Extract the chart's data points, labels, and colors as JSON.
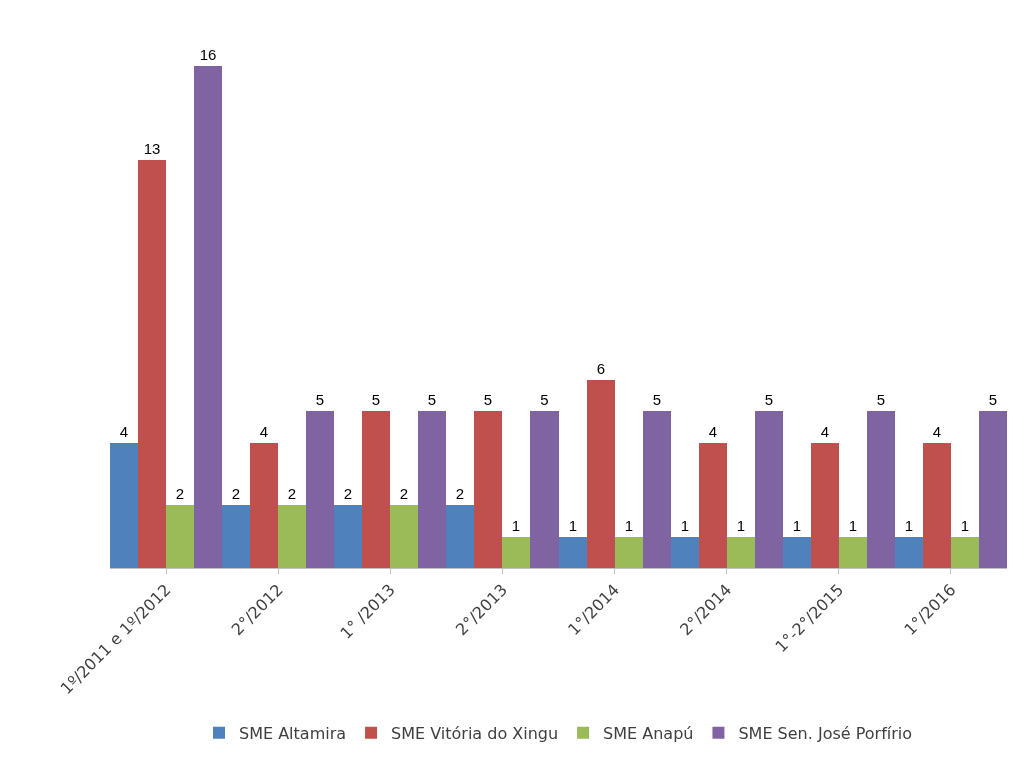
{
  "chart_data": {
    "type": "bar",
    "categories": [
      "1º/2011 e 1º/2012",
      "2°/2012",
      "1° /2013",
      "2°/2013",
      "1°/2014",
      "2°/2014",
      "1°-2°/2015",
      "1°/2016"
    ],
    "series": [
      {
        "name": "SME Altamira",
        "color": "#4f81bd",
        "values": [
          4,
          2,
          2,
          2,
          1,
          1,
          1,
          1
        ]
      },
      {
        "name": "SME Vitória do Xingu",
        "color": "#c0504d",
        "values": [
          13,
          4,
          5,
          5,
          6,
          4,
          4,
          4
        ]
      },
      {
        "name": "SME Anapú",
        "color": "#9bbb59",
        "values": [
          2,
          2,
          2,
          1,
          1,
          1,
          1,
          1
        ]
      },
      {
        "name": "SME Sen. José Porfírio",
        "color": "#8064a2",
        "values": [
          16,
          5,
          5,
          5,
          5,
          5,
          5,
          5
        ]
      }
    ],
    "data_labels": true,
    "grid": false,
    "legend": "bottom",
    "tick_labels": "x"
  }
}
